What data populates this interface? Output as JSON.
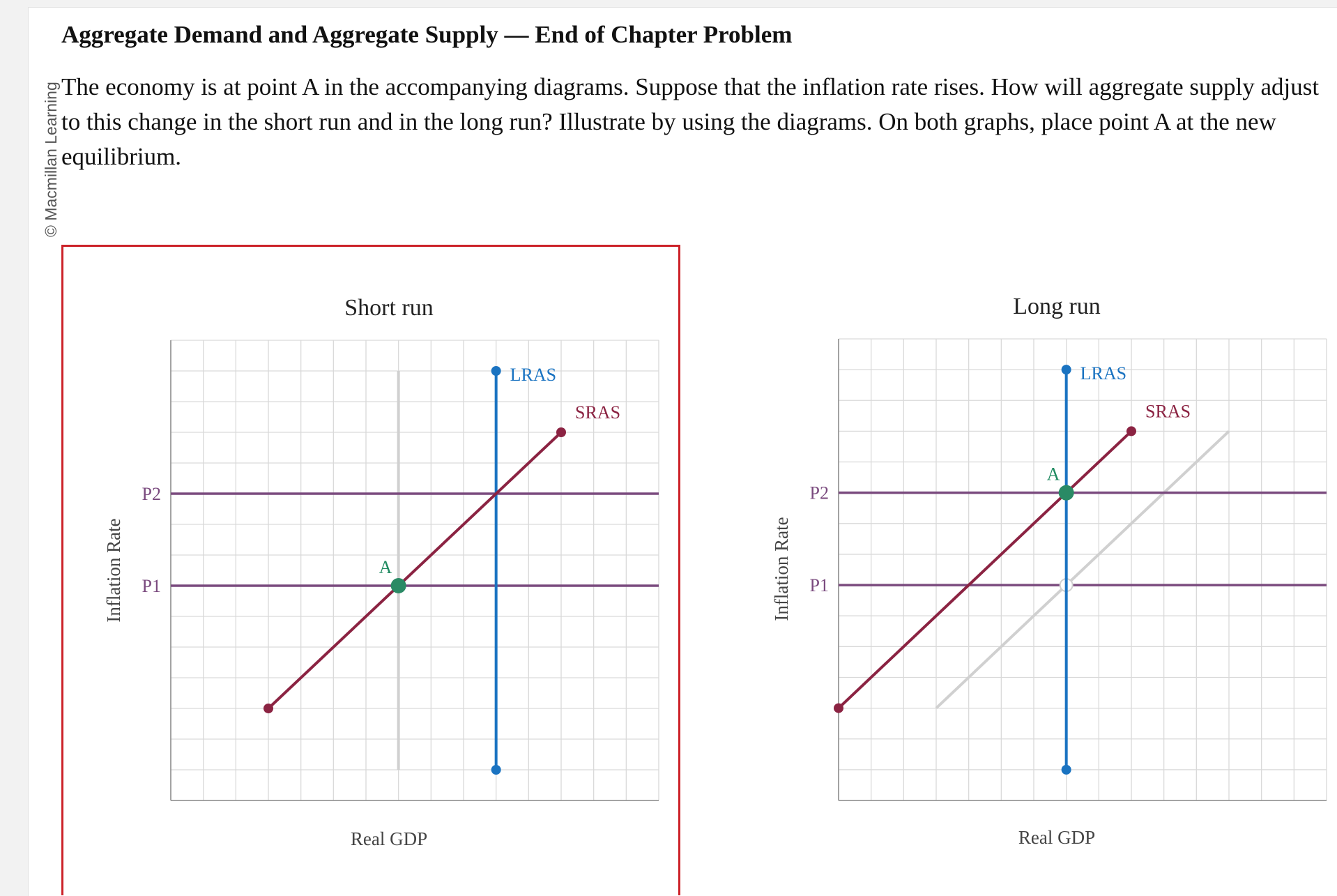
{
  "copyright": "© Macmillan Learning",
  "problem": {
    "title": "Aggregate Demand and Aggregate Supply — End of Chapter Problem",
    "text": "The economy is at point A in the accompanying diagrams. Suppose that the inflation rate rises. How will aggregate supply adjust to this change in the short run and in the long run? Illustrate by using the diagrams. On both graphs, place point A at the new equilibrium."
  },
  "colors": {
    "lras": "#1a73c1",
    "sras": "#8b2342",
    "price_line": "#7a4a7e",
    "point": "#2a8a65",
    "ghost": "#d0d0d0",
    "frame": "#cc2229"
  },
  "graphs": [
    {
      "title": "Short run",
      "xlabel": "Real GDP",
      "ylabel": "Inflation Rate",
      "price_levels": [
        {
          "label": "P2",
          "y": 10
        },
        {
          "label": "P1",
          "y": 7
        }
      ],
      "lras": {
        "label": "LRAS",
        "x": 10,
        "y_range": [
          1,
          14
        ]
      },
      "sras": {
        "label": "SRAS",
        "from": [
          3,
          3
        ],
        "to": [
          12,
          12
        ]
      },
      "ghost_lines": [
        {
          "from": [
            7,
            1
          ],
          "to": [
            7,
            14
          ]
        }
      ],
      "point": {
        "label": "A",
        "x": 7,
        "y": 7
      },
      "selected": true
    },
    {
      "title": "Long run",
      "xlabel": "Real GDP",
      "ylabel": "Inflation Rate",
      "price_levels": [
        {
          "label": "P2",
          "y": 10
        },
        {
          "label": "P1",
          "y": 7
        }
      ],
      "lras": {
        "label": "LRAS",
        "x": 7,
        "y_range": [
          1,
          14
        ]
      },
      "sras": {
        "label": "SRAS",
        "from": [
          0,
          3
        ],
        "to": [
          9,
          12
        ]
      },
      "ghost_lines": [
        {
          "from": [
            3,
            3
          ],
          "to": [
            12,
            12
          ]
        }
      ],
      "ghost_point": [
        7,
        7
      ],
      "point": {
        "label": "A",
        "x": 7,
        "y": 10
      },
      "selected": false
    }
  ]
}
